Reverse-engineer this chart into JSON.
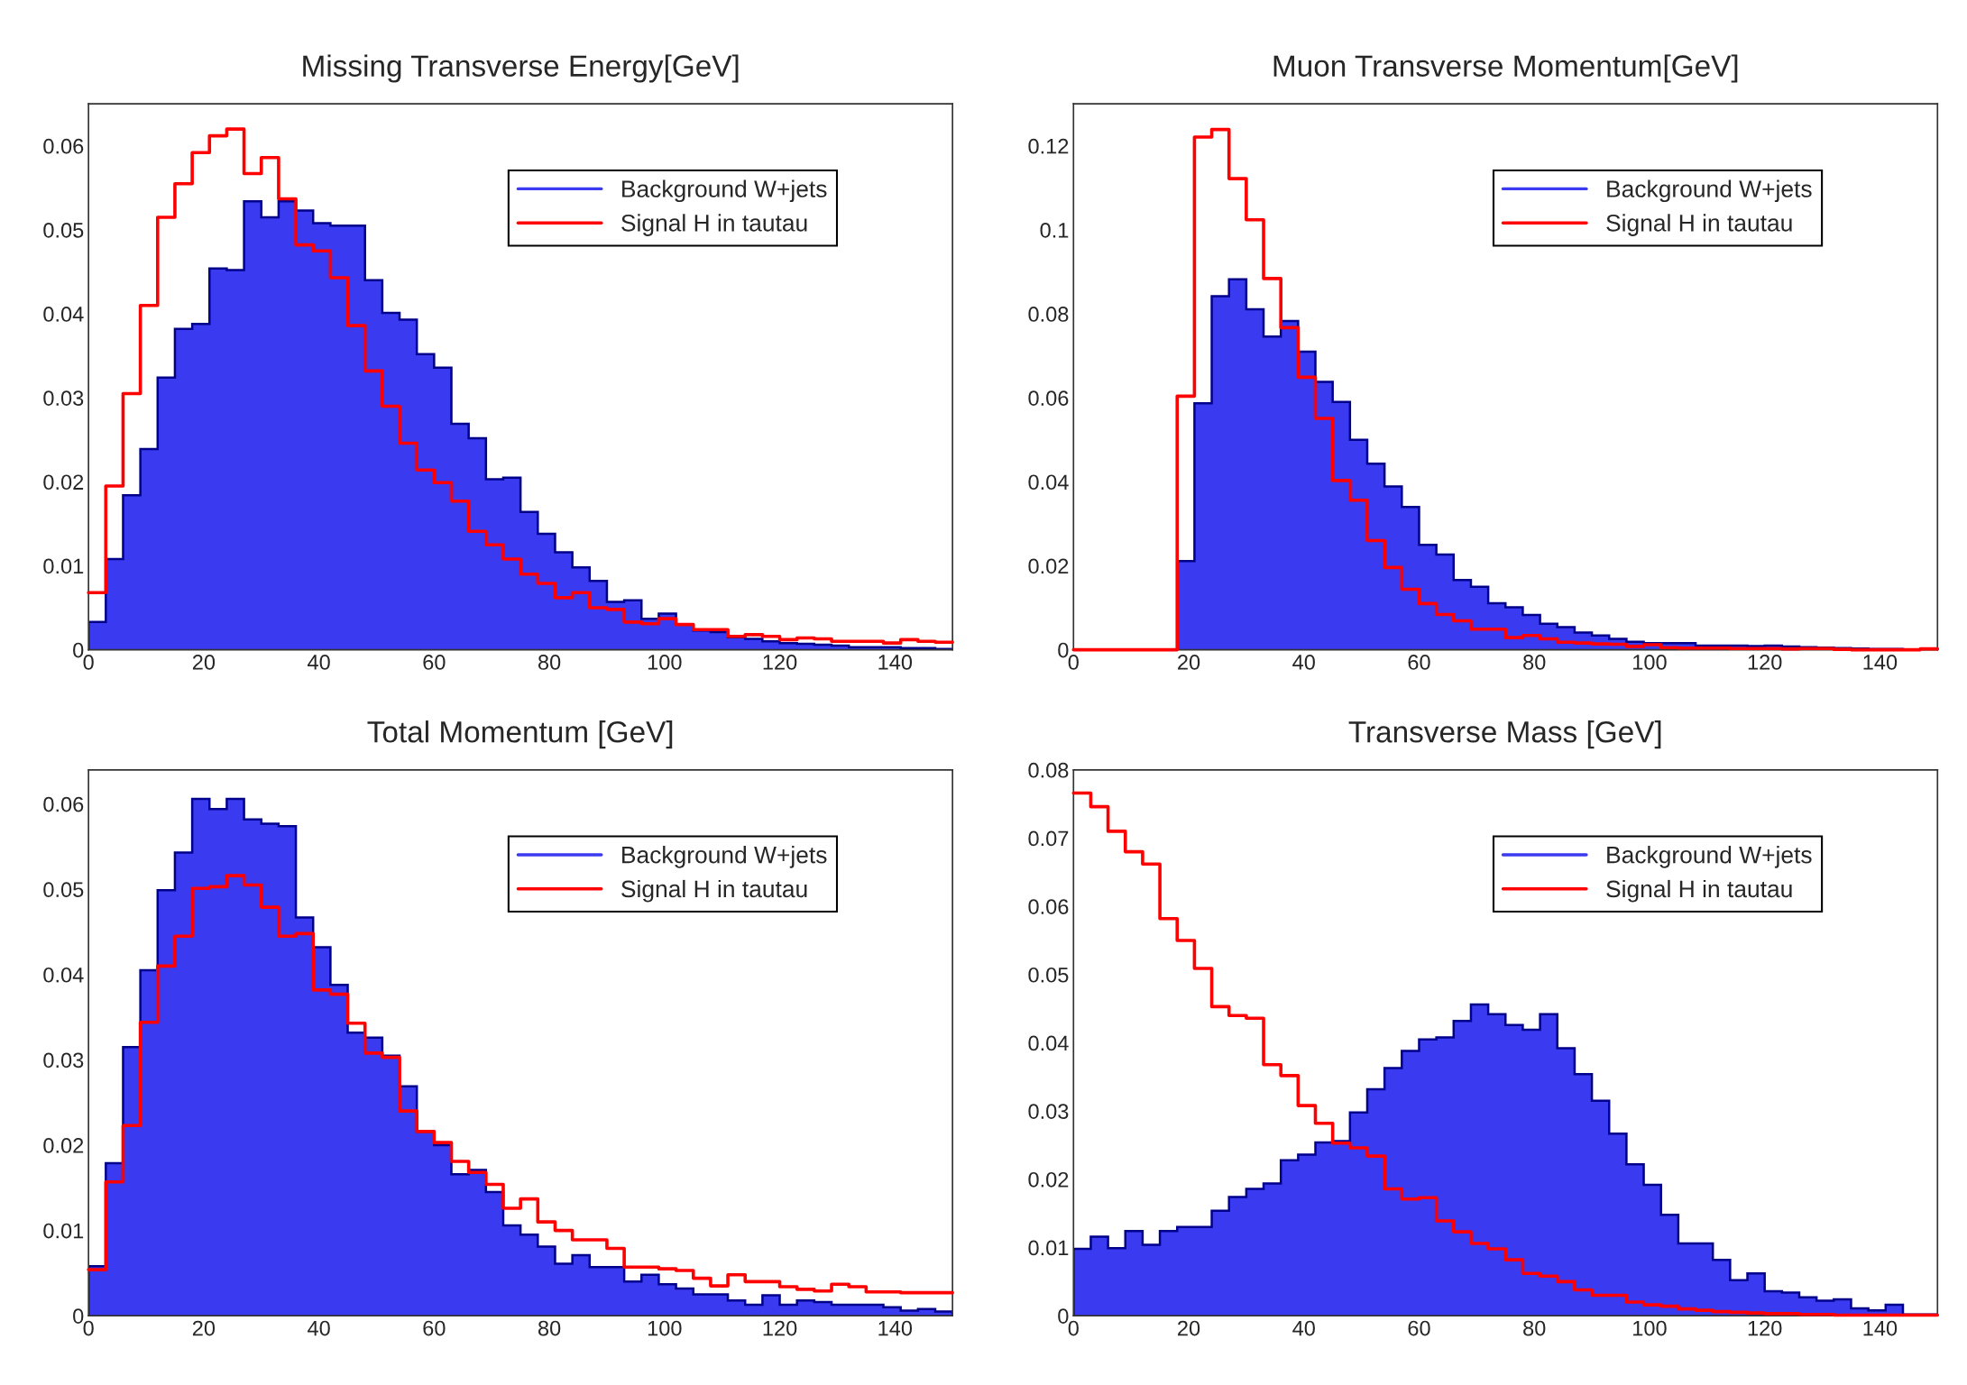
{
  "chart_data": [
    {
      "type": "histogram",
      "title": "Missing Transverse Energy[GeV]",
      "bins": [
        0,
        3,
        6,
        9,
        12,
        15,
        18,
        21,
        24,
        27,
        30,
        33,
        36,
        39,
        42,
        45,
        48,
        51,
        54,
        57,
        60,
        63,
        66,
        69,
        72,
        75,
        78,
        81,
        84,
        87,
        90,
        93,
        96,
        99,
        102,
        105,
        108,
        111,
        114,
        117,
        120,
        123,
        126,
        129,
        132,
        135,
        138,
        141,
        144,
        147,
        150
      ],
      "series": [
        {
          "name": "Background W+jets",
          "type": "histogram",
          "color": "#3a3af0",
          "values": [
            0.0033,
            0.0108,
            0.0184,
            0.0239,
            0.0324,
            0.0382,
            0.0388,
            0.0454,
            0.0452,
            0.0534,
            0.0515,
            0.0534,
            0.0523,
            0.0508,
            0.0505,
            0.0505,
            0.044,
            0.0401,
            0.0393,
            0.0352,
            0.0336,
            0.0269,
            0.0252,
            0.0203,
            0.0205,
            0.0164,
            0.0138,
            0.0116,
            0.0098,
            0.0082,
            0.0057,
            0.0059,
            0.0037,
            0.0043,
            0.003,
            0.0023,
            0.0021,
            0.0015,
            0.0013,
            0.001,
            0.0008,
            0.0007,
            0.0006,
            0.0005,
            0.0003,
            0.0003,
            0.0003,
            0.0002,
            0.0002,
            0.0001
          ]
        },
        {
          "name": "Signal H in tautau",
          "type": "step",
          "color": "#ff0000",
          "x": [
            0,
            3,
            6,
            9,
            12,
            15,
            18,
            21,
            24,
            27,
            30,
            33,
            36,
            39,
            42,
            45,
            48,
            51,
            54,
            57,
            60,
            63,
            66,
            69,
            72,
            75,
            78,
            81,
            84,
            87,
            90,
            93,
            96,
            99,
            102,
            105,
            108,
            111,
            114,
            117,
            120,
            123,
            126,
            129,
            132,
            135,
            138,
            141,
            144,
            147,
            150
          ],
          "values": [
            0.0068,
            0.0195,
            0.0305,
            0.041,
            0.0515,
            0.0555,
            0.0592,
            0.0612,
            0.062,
            0.0567,
            0.0586,
            0.0537,
            0.0482,
            0.0475,
            0.0443,
            0.0386,
            0.0332,
            0.029,
            0.0246,
            0.0214,
            0.0199,
            0.0177,
            0.0141,
            0.0125,
            0.0108,
            0.009,
            0.0079,
            0.0062,
            0.0068,
            0.005,
            0.0048,
            0.0033,
            0.0031,
            0.0037,
            0.003,
            0.0024,
            0.0024,
            0.0016,
            0.0018,
            0.0016,
            0.0012,
            0.0014,
            0.0013,
            0.001,
            0.001,
            0.001,
            0.0008,
            0.0012,
            0.001,
            0.0009,
            0.0009
          ]
        }
      ],
      "xlim": [
        0,
        150
      ],
      "xticks": [
        0,
        20,
        40,
        60,
        80,
        100,
        120,
        140
      ],
      "ylim": [
        0,
        0.065
      ],
      "yticks": [
        0,
        0.01,
        0.02,
        0.03,
        0.04,
        0.05,
        0.06
      ],
      "legend": "top right",
      "grid": false
    },
    {
      "type": "histogram",
      "title": "Muon Transverse Momentum[GeV]",
      "bins": [
        0,
        3,
        6,
        9,
        12,
        15,
        18,
        21,
        24,
        27,
        30,
        33,
        36,
        39,
        42,
        45,
        48,
        51,
        54,
        57,
        60,
        63,
        66,
        69,
        72,
        75,
        78,
        81,
        84,
        87,
        90,
        93,
        96,
        99,
        102,
        105,
        108,
        111,
        114,
        117,
        120,
        123,
        126,
        129,
        132,
        135,
        138,
        141,
        144,
        147,
        150
      ],
      "series": [
        {
          "name": "Background W+jets",
          "type": "histogram",
          "color": "#3a3af0",
          "values": [
            0,
            0,
            0,
            0,
            0,
            0,
            0.0211,
            0.0587,
            0.0842,
            0.0882,
            0.0811,
            0.0746,
            0.0783,
            0.071,
            0.0638,
            0.059,
            0.05,
            0.0443,
            0.0389,
            0.034,
            0.025,
            0.0227,
            0.0166,
            0.015,
            0.0111,
            0.0101,
            0.0083,
            0.0062,
            0.0054,
            0.0041,
            0.0034,
            0.0026,
            0.0019,
            0.0016,
            0.0016,
            0.0016,
            0.001,
            0.001,
            0.001,
            0.0009,
            0.001,
            0.0008,
            0.0006,
            0.0005,
            0.0004,
            0.0003,
            0.0002,
            0.0002,
            0.0001,
            0.0001
          ]
        },
        {
          "name": "Signal H in tautau",
          "type": "step",
          "color": "#ff0000",
          "x": [
            0,
            3,
            6,
            9,
            12,
            15,
            18,
            21,
            24,
            27,
            30,
            33,
            36,
            39,
            42,
            45,
            48,
            51,
            54,
            57,
            60,
            63,
            66,
            69,
            72,
            75,
            78,
            81,
            84,
            87,
            90,
            93,
            96,
            99,
            102,
            105,
            108,
            111,
            114,
            117,
            120,
            123,
            126,
            129,
            132,
            135,
            138,
            141,
            144,
            147,
            150
          ],
          "values": [
            0,
            0,
            0,
            0,
            0,
            0,
            0.0604,
            0.1221,
            0.1239,
            0.1122,
            0.1024,
            0.0884,
            0.0767,
            0.0649,
            0.0551,
            0.0403,
            0.0356,
            0.026,
            0.0196,
            0.0144,
            0.011,
            0.0084,
            0.0069,
            0.0049,
            0.0049,
            0.0029,
            0.0034,
            0.0026,
            0.0018,
            0.0016,
            0.0014,
            0.0013,
            0.0008,
            0.0012,
            0.0005,
            0.0004,
            0.0004,
            0.0004,
            0.0003,
            0.0003,
            0.0003,
            0.0002,
            0.0003,
            0.0003,
            0.0001,
            0,
            0,
            0,
            0,
            0.0002,
            0.0002
          ]
        }
      ],
      "xlim": [
        0,
        150
      ],
      "xticks": [
        0,
        20,
        40,
        60,
        80,
        100,
        120,
        140
      ],
      "ylim": [
        0,
        0.13
      ],
      "yticks": [
        0,
        0.02,
        0.04,
        0.06,
        0.08,
        0.1,
        0.12
      ],
      "legend": "top right",
      "grid": false
    },
    {
      "type": "histogram",
      "title": "Total Momentum [GeV]",
      "bins": [
        0,
        3,
        6,
        9,
        12,
        15,
        18,
        21,
        24,
        27,
        30,
        33,
        36,
        39,
        42,
        45,
        48,
        51,
        54,
        57,
        60,
        63,
        66,
        69,
        72,
        75,
        78,
        81,
        84,
        87,
        90,
        93,
        96,
        99,
        102,
        105,
        108,
        111,
        114,
        117,
        120,
        123,
        126,
        129,
        132,
        135,
        138,
        141,
        144,
        147,
        150
      ],
      "series": [
        {
          "name": "Background W+jets",
          "type": "histogram",
          "color": "#3a3af0",
          "values": [
            0.0058,
            0.0179,
            0.0315,
            0.0405,
            0.0499,
            0.0543,
            0.0606,
            0.0594,
            0.0606,
            0.0582,
            0.0577,
            0.0574,
            0.0467,
            0.0432,
            0.0388,
            0.0332,
            0.0326,
            0.0305,
            0.0269,
            0.0216,
            0.02,
            0.0166,
            0.0171,
            0.0145,
            0.0106,
            0.0095,
            0.0081,
            0.0061,
            0.0071,
            0.0057,
            0.0057,
            0.004,
            0.0048,
            0.0037,
            0.0032,
            0.0025,
            0.0025,
            0.0018,
            0.0013,
            0.0024,
            0.0013,
            0.0018,
            0.0016,
            0.0013,
            0.0013,
            0.0013,
            0.001,
            0.0006,
            0.0008,
            0.0005
          ]
        },
        {
          "name": "Signal H in tautau",
          "type": "step",
          "color": "#ff0000",
          "x": [
            0,
            3,
            6,
            9,
            12,
            15,
            18,
            21,
            24,
            27,
            30,
            33,
            36,
            39,
            42,
            45,
            48,
            51,
            54,
            57,
            60,
            63,
            66,
            69,
            72,
            75,
            78,
            81,
            84,
            87,
            90,
            93,
            96,
            99,
            102,
            105,
            108,
            111,
            114,
            117,
            120,
            123,
            126,
            129,
            132,
            135,
            138,
            141,
            144,
            147,
            150
          ],
          "values": [
            0.0054,
            0.0157,
            0.0223,
            0.0344,
            0.041,
            0.0445,
            0.0501,
            0.0503,
            0.0516,
            0.0505,
            0.0479,
            0.0445,
            0.0448,
            0.0382,
            0.0377,
            0.0343,
            0.0308,
            0.0303,
            0.024,
            0.0216,
            0.0203,
            0.0181,
            0.0168,
            0.0154,
            0.0126,
            0.0137,
            0.011,
            0.01,
            0.0089,
            0.0089,
            0.0079,
            0.0057,
            0.0057,
            0.0055,
            0.0053,
            0.0044,
            0.0035,
            0.0048,
            0.004,
            0.004,
            0.0034,
            0.0031,
            0.0029,
            0.0037,
            0.0034,
            0.0028,
            0.0028,
            0.0027,
            0.0027,
            0.0027,
            0.0027
          ]
        }
      ],
      "xlim": [
        0,
        150
      ],
      "xticks": [
        0,
        20,
        40,
        60,
        80,
        100,
        120,
        140
      ],
      "ylim": [
        0,
        0.064
      ],
      "yticks": [
        0,
        0.01,
        0.02,
        0.03,
        0.04,
        0.05,
        0.06
      ],
      "legend": "top right",
      "grid": false
    },
    {
      "type": "histogram",
      "title": "Transverse Mass [GeV]",
      "bins": [
        0,
        3,
        6,
        9,
        12,
        15,
        18,
        21,
        24,
        27,
        30,
        33,
        36,
        39,
        42,
        45,
        48,
        51,
        54,
        57,
        60,
        63,
        66,
        69,
        72,
        75,
        78,
        81,
        84,
        87,
        90,
        93,
        96,
        99,
        102,
        105,
        108,
        111,
        114,
        117,
        120,
        123,
        126,
        129,
        132,
        135,
        138,
        141,
        144,
        147,
        150
      ],
      "series": [
        {
          "name": "Background W+jets",
          "type": "histogram",
          "color": "#3a3af0",
          "values": [
            0.0098,
            0.0116,
            0.0099,
            0.0124,
            0.0104,
            0.0124,
            0.013,
            0.013,
            0.0154,
            0.0174,
            0.0186,
            0.0194,
            0.0228,
            0.0236,
            0.0254,
            0.0256,
            0.0298,
            0.0332,
            0.0363,
            0.0388,
            0.0405,
            0.0408,
            0.0432,
            0.0456,
            0.0442,
            0.0426,
            0.0419,
            0.0442,
            0.0392,
            0.0354,
            0.0315,
            0.0267,
            0.0222,
            0.0192,
            0.0148,
            0.0106,
            0.0106,
            0.0082,
            0.0052,
            0.0062,
            0.0036,
            0.0034,
            0.0027,
            0.0022,
            0.0024,
            0.0011,
            0.0008,
            0.0016,
            0.0002,
            0.0002
          ]
        },
        {
          "name": "Signal H in tautau",
          "type": "step",
          "color": "#ff0000",
          "x": [
            0,
            3,
            6,
            9,
            12,
            15,
            18,
            21,
            24,
            27,
            30,
            33,
            36,
            39,
            42,
            45,
            48,
            51,
            54,
            57,
            60,
            63,
            66,
            69,
            72,
            75,
            78,
            81,
            84,
            87,
            90,
            93,
            96,
            99,
            102,
            105,
            108,
            111,
            114,
            117,
            120,
            123,
            126,
            129,
            132,
            135,
            138,
            141,
            144,
            147,
            150
          ],
          "values": [
            0.0766,
            0.0746,
            0.071,
            0.068,
            0.0662,
            0.0582,
            0.055,
            0.0509,
            0.0453,
            0.044,
            0.0436,
            0.0368,
            0.0352,
            0.0308,
            0.0282,
            0.0253,
            0.0246,
            0.0234,
            0.0186,
            0.0171,
            0.0173,
            0.0139,
            0.0123,
            0.0106,
            0.0098,
            0.0082,
            0.0062,
            0.0058,
            0.005,
            0.0038,
            0.003,
            0.003,
            0.002,
            0.0016,
            0.0014,
            0.001,
            0.0008,
            0.0006,
            0.0005,
            0.0004,
            0.0003,
            0.0003,
            0.0002,
            0.0002,
            0.0001,
            0.0001,
            0.0001,
            0.0001,
            0.0001,
            0.0001,
            0.0001
          ]
        }
      ],
      "xlim": [
        0,
        150
      ],
      "xticks": [
        0,
        20,
        40,
        60,
        80,
        100,
        120,
        140
      ],
      "ylim": [
        0,
        0.08
      ],
      "yticks": [
        0,
        0.01,
        0.02,
        0.03,
        0.04,
        0.05,
        0.06,
        0.07,
        0.08
      ],
      "legend": "top right",
      "grid": false
    }
  ]
}
